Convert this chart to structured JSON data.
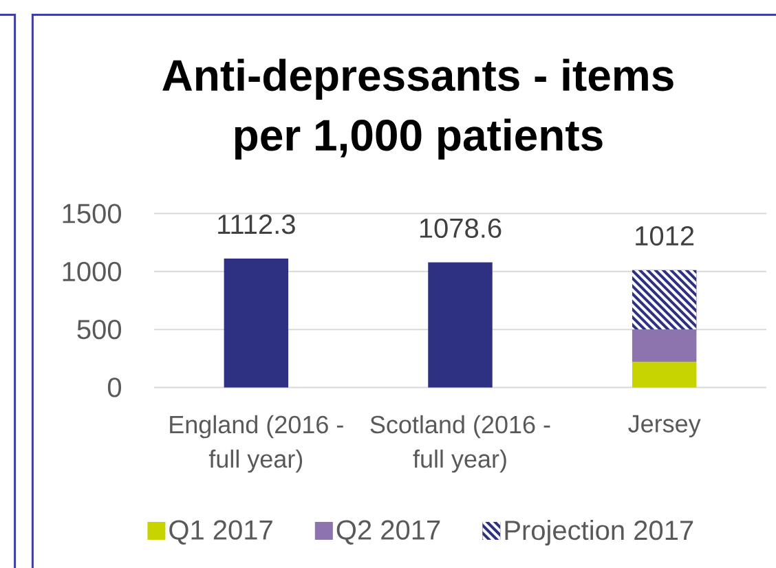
{
  "chart_data": {
    "type": "bar",
    "title": "Anti-depressants - items per 1,000 patients",
    "categories": [
      "England (2016 - full year)",
      "Scotland (2016 - full year)",
      "Jersey"
    ],
    "stacked": true,
    "series": [
      {
        "color": "#2e3182",
        "values": [
          1112.3,
          1078.6,
          null
        ]
      },
      {
        "name": "Q1 2017",
        "color": "#c8d400",
        "values": [
          null,
          null,
          220
        ]
      },
      {
        "name": "Q2 2017",
        "color": "#8e74ae",
        "values": [
          null,
          null,
          280
        ]
      },
      {
        "name": "Projection 2017",
        "color": "#2e3182",
        "values": [
          null,
          null,
          512
        ]
      }
    ],
    "totals": [
      "1112.3",
      "1078.6",
      "1012"
    ],
    "ylim": [
      0,
      1500
    ],
    "yticks": [
      0,
      500,
      1000,
      1500
    ],
    "grid": "y",
    "legend": "bottom"
  }
}
